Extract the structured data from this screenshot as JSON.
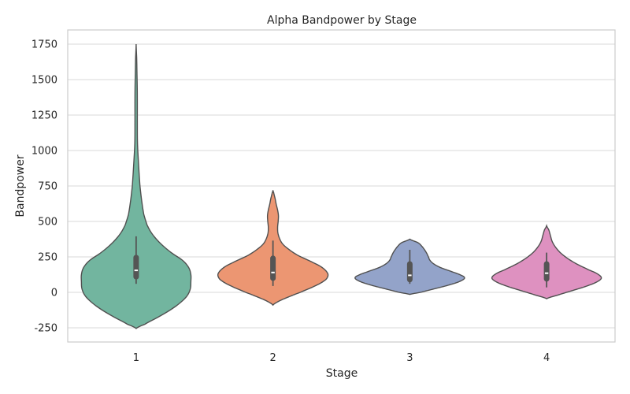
{
  "chart_data": {
    "type": "violin",
    "title": "Alpha Bandpower by Stage",
    "xlabel": "Stage",
    "ylabel": "Bandpower",
    "categories": [
      "1",
      "2",
      "3",
      "4"
    ],
    "ylim": [
      -350,
      1850
    ],
    "yticks": [
      -250,
      0,
      250,
      500,
      750,
      1000,
      1250,
      1500,
      1750
    ],
    "grid": true,
    "violins": [
      {
        "stage": "1",
        "color": "#72b59f",
        "range": [
          -255,
          1750
        ],
        "q1": 110,
        "median": 155,
        "q3": 245,
        "whisker_low": 60,
        "whisker_high": 395,
        "profile": [
          [
            -255,
            0.0
          ],
          [
            -225,
            0.16
          ],
          [
            -175,
            0.4
          ],
          [
            -125,
            0.62
          ],
          [
            -75,
            0.8
          ],
          [
            -25,
            0.93
          ],
          [
            25,
            0.99
          ],
          [
            75,
            1.0
          ],
          [
            125,
            1.0
          ],
          [
            175,
            0.96
          ],
          [
            225,
            0.85
          ],
          [
            275,
            0.66
          ],
          [
            325,
            0.5
          ],
          [
            375,
            0.37
          ],
          [
            425,
            0.27
          ],
          [
            475,
            0.2
          ],
          [
            550,
            0.14
          ],
          [
            650,
            0.1
          ],
          [
            750,
            0.07
          ],
          [
            900,
            0.045
          ],
          [
            1050,
            0.025
          ],
          [
            1200,
            0.022
          ],
          [
            1350,
            0.022
          ],
          [
            1450,
            0.02
          ],
          [
            1550,
            0.015
          ],
          [
            1650,
            0.01
          ],
          [
            1750,
            0.0
          ]
        ]
      },
      {
        "stage": "2",
        "color": "#ec9672",
        "range": [
          -90,
          720
        ],
        "q1": 100,
        "median": 140,
        "q3": 240,
        "whisker_low": 45,
        "whisker_high": 365,
        "profile": [
          [
            -90,
            0.0
          ],
          [
            -60,
            0.12
          ],
          [
            -30,
            0.3
          ],
          [
            0,
            0.5
          ],
          [
            40,
            0.74
          ],
          [
            80,
            0.93
          ],
          [
            110,
            1.0
          ],
          [
            140,
            0.99
          ],
          [
            180,
            0.88
          ],
          [
            220,
            0.68
          ],
          [
            260,
            0.46
          ],
          [
            300,
            0.3
          ],
          [
            340,
            0.18
          ],
          [
            380,
            0.12
          ],
          [
            420,
            0.09
          ],
          [
            460,
            0.085
          ],
          [
            500,
            0.095
          ],
          [
            540,
            0.1
          ],
          [
            580,
            0.085
          ],
          [
            620,
            0.06
          ],
          [
            660,
            0.04
          ],
          [
            700,
            0.015
          ],
          [
            720,
            0.0
          ]
        ]
      },
      {
        "stage": "3",
        "color": "#93a3c9",
        "range": [
          -15,
          375
        ],
        "q1": 90,
        "median": 120,
        "q3": 200,
        "whisker_low": 60,
        "whisker_high": 300,
        "profile": [
          [
            -15,
            0.0
          ],
          [
            0,
            0.2
          ],
          [
            25,
            0.45
          ],
          [
            50,
            0.7
          ],
          [
            75,
            0.9
          ],
          [
            100,
            1.0
          ],
          [
            120,
            0.94
          ],
          [
            150,
            0.74
          ],
          [
            175,
            0.56
          ],
          [
            200,
            0.44
          ],
          [
            225,
            0.37
          ],
          [
            250,
            0.34
          ],
          [
            275,
            0.31
          ],
          [
            300,
            0.27
          ],
          [
            325,
            0.22
          ],
          [
            350,
            0.15
          ],
          [
            375,
            0.0
          ]
        ]
      },
      {
        "stage": "4",
        "color": "#de91c0",
        "range": [
          -45,
          470
        ],
        "q1": 95,
        "median": 135,
        "q3": 200,
        "whisker_low": 35,
        "whisker_high": 280,
        "profile": [
          [
            -45,
            0.0
          ],
          [
            -20,
            0.2
          ],
          [
            10,
            0.45
          ],
          [
            40,
            0.7
          ],
          [
            70,
            0.9
          ],
          [
            100,
            1.0
          ],
          [
            130,
            0.93
          ],
          [
            160,
            0.76
          ],
          [
            200,
            0.55
          ],
          [
            240,
            0.38
          ],
          [
            280,
            0.25
          ],
          [
            320,
            0.16
          ],
          [
            360,
            0.1
          ],
          [
            400,
            0.07
          ],
          [
            440,
            0.04
          ],
          [
            470,
            0.0
          ]
        ]
      }
    ]
  }
}
